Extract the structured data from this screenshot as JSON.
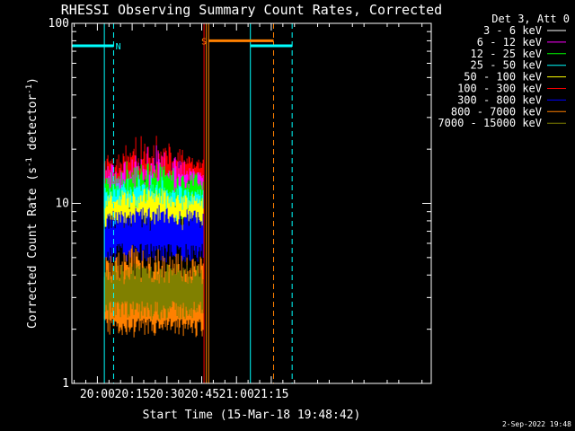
{
  "chart_data": {
    "type": "line",
    "title": "RHESSI Observing Summary Count Rates, Corrected",
    "xlabel": "Start Time (15-Mar-18 19:48:42)",
    "ylabel_main": "Corrected Count Rate (s",
    "ylabel_sup1": "-1",
    "ylabel_mid": " detector",
    "ylabel_sup2": "-1",
    "ylabel_end": ")",
    "y_scale": "log",
    "ylim": [
      1,
      100
    ],
    "xlim": [
      "19:49",
      "22:24"
    ],
    "x_ticks": [
      "20:00",
      "20:15",
      "20:30",
      "20:45",
      "21:00",
      "21:15"
    ],
    "y_ticks": [
      "1",
      "10",
      "100"
    ],
    "grid": false,
    "legend": {
      "placement": "top-right",
      "header": "Det 3, Att 0",
      "entries": [
        {
          "label": "3 - 6 keV",
          "color": "#ffffff"
        },
        {
          "label": "6 - 12 keV",
          "color": "#ff00ff"
        },
        {
          "label": "12 - 25 keV",
          "color": "#00ff00"
        },
        {
          "label": "25 - 50 keV",
          "color": "#00ffff"
        },
        {
          "label": "50 - 100 keV",
          "color": "#ffff00"
        },
        {
          "label": "100 - 300 keV",
          "color": "#ff0000"
        },
        {
          "label": "300 - 800 keV",
          "color": "#0000ff"
        },
        {
          "label": "800 - 7000 keV",
          "color": "#ff8000"
        },
        {
          "label": "7000 - 15000 keV",
          "color": "#808000"
        }
      ]
    },
    "plot_series": [
      {
        "color": "#000000",
        "start": "20:03",
        "end": "20:46",
        "low": 17,
        "high": 21,
        "peak_time": "20:19",
        "peak_high": 30
      },
      {
        "color": "#ff0000",
        "start": "20:03",
        "end": "20:46",
        "low": 12,
        "high": 17,
        "peak_time": "20:22",
        "peak_high": 25
      },
      {
        "color": "#ff00ff",
        "start": "20:03",
        "end": "20:46",
        "low": 10,
        "high": 15,
        "peak_time": "20:23",
        "peak_high": 22
      },
      {
        "color": "#00ff00",
        "start": "20:03",
        "end": "20:46",
        "low": 9,
        "high": 14,
        "peak_time": "20:22",
        "peak_high": 19
      },
      {
        "color": "#00ffff",
        "start": "20:03",
        "end": "20:46",
        "low": 8.5,
        "high": 12,
        "peak_time": "20:20",
        "peak_high": 15
      },
      {
        "color": "#ffff00",
        "start": "20:03",
        "end": "20:46",
        "low": 7.5,
        "high": 11,
        "peak_time": "20:21",
        "peak_high": 13
      },
      {
        "color": "#0000ff",
        "start": "20:03",
        "end": "20:46",
        "low": 5.2,
        "high": 9,
        "peak_time": "20:24",
        "peak_high": 10
      },
      {
        "color": "#ff8000",
        "start": "20:03",
        "end": "20:46",
        "low": 2,
        "high": 5,
        "peak_time": "20:20",
        "peak_high": 6
      },
      {
        "color": "#808000",
        "start": "20:03",
        "end": "20:46",
        "low": 2.5,
        "high": 4.5,
        "peak_time": "20:20",
        "peak_high": 5
      }
    ],
    "vertical_markers": [
      {
        "time": "20:03",
        "color": "#00ffff",
        "style": "solid"
      },
      {
        "time": "20:07",
        "color": "#00ffff",
        "style": "dashed"
      },
      {
        "time": "20:46",
        "color": "#ff0000",
        "style": "solid"
      },
      {
        "time": "20:47",
        "color": "#ff8000",
        "style": "solid"
      },
      {
        "time": "20:48",
        "color": "#ff8000",
        "style": "solid"
      },
      {
        "time": "21:06",
        "color": "#00ffff",
        "style": "solid"
      },
      {
        "time": "21:16",
        "color": "#ff8000",
        "style": "dashed"
      },
      {
        "time": "21:24",
        "color": "#00ffff",
        "style": "dashed"
      }
    ],
    "flag_bars": [
      {
        "label": "N",
        "color": "#00ffff",
        "start": "19:49",
        "end": "20:07",
        "y": 75,
        "label_time": "20:09"
      },
      {
        "label": "S",
        "color": "#ff8000",
        "start": "20:48",
        "end": "21:16",
        "y": 80,
        "label_time": "20:46"
      },
      {
        "label": "",
        "color": "#00ffff",
        "start": "21:06",
        "end": "21:24",
        "y": 75
      }
    ]
  },
  "footer_date": "2-Sep-2022 19:48"
}
